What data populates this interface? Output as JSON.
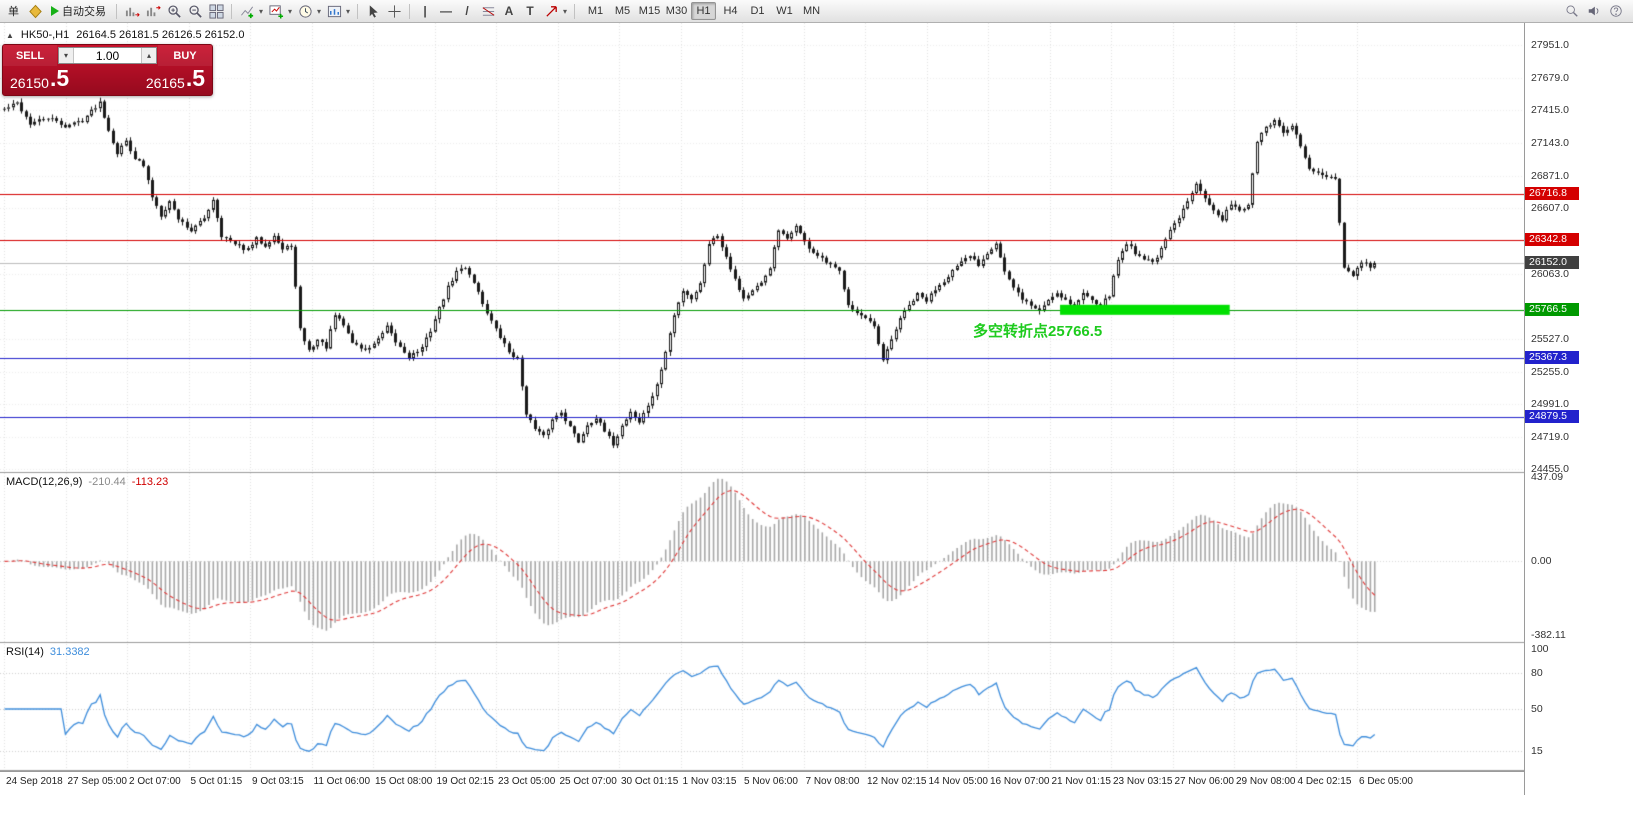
{
  "toolbar": {
    "new_order_label": "单",
    "autotrading_label": "自动交易",
    "timeframes": [
      "M1",
      "M5",
      "M15",
      "M30",
      "H1",
      "H4",
      "D1",
      "W1",
      "MN"
    ],
    "active_timeframe": "H1"
  },
  "icons": {
    "collapse": "▲",
    "caret": "▾",
    "spin_up": "▴",
    "spin_down": "▾",
    "vline": "|",
    "hline": "—",
    "tline": "/",
    "text_tool": "A",
    "label_tool": "T"
  },
  "chart_header": {
    "symbol_period": "HK50-,H1",
    "ohlc": "26164.5 26181.5 26126.5 26152.0"
  },
  "trade_panel": {
    "sell_label": "SELL",
    "buy_label": "BUY",
    "volume": "1.00",
    "sell_price_main": "26150",
    "sell_price_frac": ".5",
    "buy_price_main": "26165",
    "buy_price_frac": ".5"
  },
  "annotation": {
    "text": "多空转折点25766.5",
    "color": "#1ecb1e",
    "bar": 223,
    "price": 25620
  },
  "chart_data": [
    {
      "type": "candlestick",
      "symbol": "HK50-",
      "period": "H1",
      "price_range": [
        24430,
        28130
      ],
      "y_ticks": [
        27951,
        27679,
        27415,
        27143,
        26871,
        26607,
        26063,
        25527,
        25255,
        24991,
        24719,
        24455
      ],
      "levels": [
        {
          "price": 26716.8,
          "color": "#d40000"
        },
        {
          "price": 26342.8,
          "color": "#d40000"
        },
        {
          "price": 25766.5,
          "color": "#009900"
        },
        {
          "price": 25367.3,
          "color": "#2222cc"
        },
        {
          "price": 24879.5,
          "color": "#2222cc"
        }
      ],
      "current_price": {
        "value": 26152.0,
        "line_color": "#bcbcbc",
        "tag_color": "#404040"
      },
      "highlight": {
        "price": 25766.5,
        "bar_start": 243,
        "bar_end": 282,
        "color": "#00e000",
        "thickness": 10
      },
      "bars_total": 316,
      "waypoints": [
        [
          0,
          27420
        ],
        [
          3,
          27470
        ],
        [
          6,
          27300
        ],
        [
          10,
          27350
        ],
        [
          14,
          27280
        ],
        [
          18,
          27330
        ],
        [
          22,
          27480
        ],
        [
          24,
          27250
        ],
        [
          26,
          27060
        ],
        [
          28,
          27160
        ],
        [
          30,
          27020
        ],
        [
          32,
          26950
        ],
        [
          34,
          26700
        ],
        [
          36,
          26550
        ],
        [
          38,
          26660
        ],
        [
          40,
          26520
        ],
        [
          43,
          26420
        ],
        [
          46,
          26520
        ],
        [
          48,
          26680
        ],
        [
          50,
          26380
        ],
        [
          53,
          26300
        ],
        [
          56,
          26260
        ],
        [
          58,
          26350
        ],
        [
          60,
          26300
        ],
        [
          62,
          26380
        ],
        [
          64,
          26260
        ],
        [
          66,
          26300
        ],
        [
          68,
          25600
        ],
        [
          70,
          25430
        ],
        [
          72,
          25520
        ],
        [
          74,
          25460
        ],
        [
          76,
          25720
        ],
        [
          78,
          25640
        ],
        [
          80,
          25500
        ],
        [
          83,
          25430
        ],
        [
          86,
          25520
        ],
        [
          88,
          25620
        ],
        [
          90,
          25500
        ],
        [
          93,
          25380
        ],
        [
          96,
          25450
        ],
        [
          98,
          25600
        ],
        [
          100,
          25780
        ],
        [
          102,
          25950
        ],
        [
          104,
          26080
        ],
        [
          106,
          26120
        ],
        [
          108,
          26000
        ],
        [
          110,
          25820
        ],
        [
          113,
          25600
        ],
        [
          116,
          25420
        ],
        [
          118,
          25360
        ],
        [
          120,
          24920
        ],
        [
          122,
          24780
        ],
        [
          124,
          24720
        ],
        [
          126,
          24860
        ],
        [
          128,
          24930
        ],
        [
          130,
          24800
        ],
        [
          132,
          24680
        ],
        [
          134,
          24820
        ],
        [
          136,
          24880
        ],
        [
          138,
          24760
        ],
        [
          140,
          24660
        ],
        [
          142,
          24810
        ],
        [
          144,
          24930
        ],
        [
          146,
          24840
        ],
        [
          148,
          24980
        ],
        [
          150,
          25140
        ],
        [
          152,
          25420
        ],
        [
          154,
          25720
        ],
        [
          156,
          25930
        ],
        [
          158,
          25860
        ],
        [
          160,
          25980
        ],
        [
          162,
          26320
        ],
        [
          164,
          26380
        ],
        [
          166,
          26210
        ],
        [
          168,
          26020
        ],
        [
          170,
          25860
        ],
        [
          172,
          25920
        ],
        [
          174,
          25980
        ],
        [
          176,
          26120
        ],
        [
          178,
          26420
        ],
        [
          180,
          26340
        ],
        [
          182,
          26470
        ],
        [
          184,
          26320
        ],
        [
          186,
          26240
        ],
        [
          188,
          26180
        ],
        [
          190,
          26130
        ],
        [
          192,
          26080
        ],
        [
          194,
          25820
        ],
        [
          196,
          25740
        ],
        [
          198,
          25690
        ],
        [
          200,
          25620
        ],
        [
          202,
          25340
        ],
        [
          204,
          25520
        ],
        [
          206,
          25700
        ],
        [
          208,
          25800
        ],
        [
          210,
          25890
        ],
        [
          212,
          25840
        ],
        [
          214,
          25940
        ],
        [
          216,
          26010
        ],
        [
          218,
          26090
        ],
        [
          220,
          26150
        ],
        [
          222,
          26210
        ],
        [
          224,
          26140
        ],
        [
          226,
          26240
        ],
        [
          228,
          26320
        ],
        [
          230,
          26080
        ],
        [
          232,
          25940
        ],
        [
          234,
          25860
        ],
        [
          236,
          25800
        ],
        [
          238,
          25760
        ],
        [
          240,
          25850
        ],
        [
          242,
          25910
        ],
        [
          244,
          25850
        ],
        [
          246,
          25790
        ],
        [
          248,
          25900
        ],
        [
          250,
          25860
        ],
        [
          252,
          25800
        ],
        [
          254,
          25890
        ],
        [
          256,
          26180
        ],
        [
          258,
          26320
        ],
        [
          260,
          26240
        ],
        [
          262,
          26190
        ],
        [
          264,
          26160
        ],
        [
          266,
          26260
        ],
        [
          268,
          26420
        ],
        [
          270,
          26520
        ],
        [
          272,
          26660
        ],
        [
          274,
          26820
        ],
        [
          276,
          26700
        ],
        [
          278,
          26580
        ],
        [
          280,
          26500
        ],
        [
          282,
          26650
        ],
        [
          284,
          26590
        ],
        [
          286,
          26620
        ],
        [
          288,
          27160
        ],
        [
          290,
          27260
        ],
        [
          292,
          27330
        ],
        [
          294,
          27210
        ],
        [
          296,
          27280
        ],
        [
          298,
          27120
        ],
        [
          300,
          26920
        ],
        [
          302,
          26890
        ],
        [
          304,
          26860
        ],
        [
          306,
          26830
        ],
        [
          308,
          26120
        ],
        [
          310,
          26040
        ],
        [
          312,
          26160
        ],
        [
          314,
          26120
        ],
        [
          315,
          26152
        ]
      ],
      "x_labels": [
        "24 Sep 2018",
        "27 Sep 05:00",
        "2 Oct 07:00",
        "5 Oct 01:15",
        "9 Oct 03:15",
        "11 Oct 06:00",
        "15 Oct 08:00",
        "19 Oct 02:15",
        "23 Oct 05:00",
        "25 Oct 07:00",
        "30 Oct 01:15",
        "1 Nov 03:15",
        "5 Nov 06:00",
        "7 Nov 08:00",
        "12 Nov 02:15",
        "14 Nov 05:00",
        "16 Nov 07:00",
        "21 Nov 01:15",
        "23 Nov 03:15",
        "27 Nov 06:00",
        "29 Nov 08:00",
        "4 Dec 02:15",
        "6 Dec 05:00"
      ]
    },
    {
      "type": "macd",
      "label": "MACD(12,26,9)",
      "value_main": "-210.44",
      "value_signal": "-113.23",
      "params": [
        12,
        26,
        9
      ],
      "y_ticks": [
        437.09,
        0,
        -382.11
      ],
      "value_range": [
        460,
        -420
      ],
      "histogram_color": "#a8a8a8",
      "signal_color": "#e03a3a"
    },
    {
      "type": "rsi",
      "label": "RSI(14)",
      "value": "31.3382",
      "period": 14,
      "y_ticks": [
        100,
        80,
        50,
        15
      ],
      "levels": [
        80,
        50,
        15
      ],
      "line_color": "#3f8edc"
    }
  ]
}
